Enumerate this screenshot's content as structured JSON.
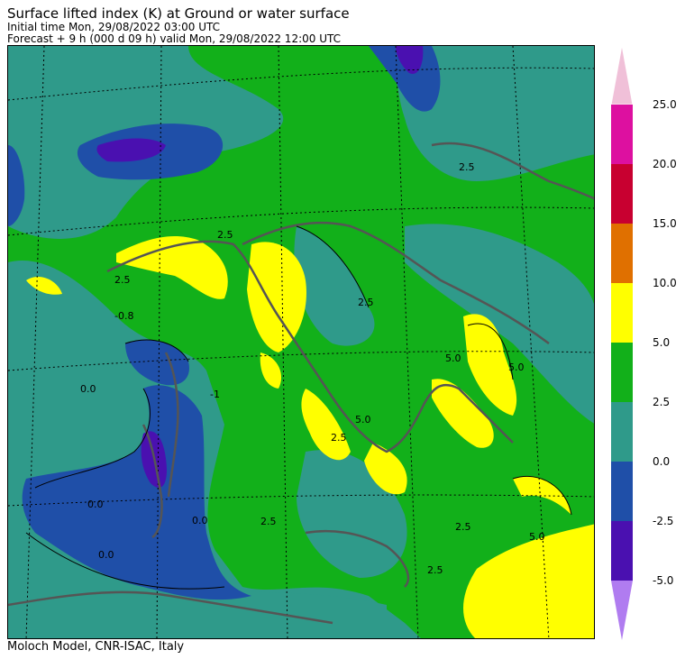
{
  "header": {
    "title": "Surface lifted index (K) at Ground or water surface",
    "initial_time": "Initial time  Mon, 29/08/2022  03:00 UTC",
    "forecast": "Forecast  +   9 h  (000 d 09 h)  valid Mon, 29/08/2022 12:00 UTC"
  },
  "footer": {
    "credit": "Moloch Model, CNR-ISAC, Italy"
  },
  "colors": {
    "le_m5": "#b07cf0",
    "m5_m25": "#4a10b0",
    "m25_0": "#1f4fa8",
    "0_25": "#2f9a8a",
    "25_5": "#12b01a",
    "5_10": "#ffff00",
    "10_15": "#e07000",
    "15_20": "#c80030",
    "20_25": "#dd10a0",
    "ge_25": "#f0c0d8",
    "coast": "#555555"
  },
  "legend": {
    "labels": [
      "25.0",
      "20.0",
      "15.0",
      "10.0",
      "5.0",
      "2.5",
      "0.0",
      "-2.5",
      "-5.0"
    ]
  },
  "map": {
    "contour_labels": [
      "2.5",
      "2.5",
      "2.5",
      "2.5",
      "2.5",
      "2.5",
      "2.5",
      "2.5",
      "5.0",
      "5.0",
      "5.0",
      "5.0",
      "0.0",
      "0.0",
      "0.0",
      "0.0",
      "-0.8",
      "-1"
    ]
  }
}
